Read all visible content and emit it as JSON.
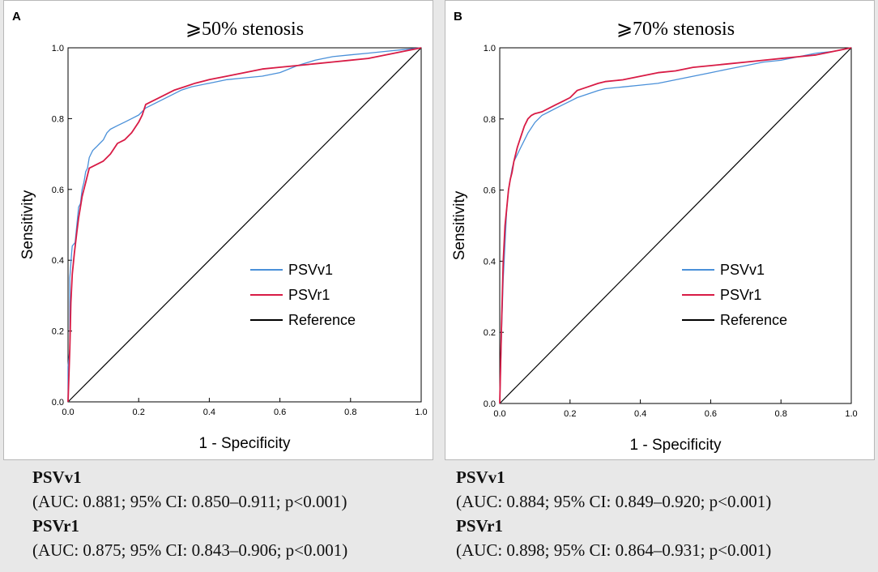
{
  "colors": {
    "psvv1": "#4a90d9",
    "psvr1": "#d81b45",
    "reference": "#000000"
  },
  "panels": [
    {
      "letter": "A",
      "title": "⩾50% stenosis",
      "chart_data": {
        "type": "line",
        "title": "⩾50% stenosis",
        "xlabel": "1 - Specificity",
        "ylabel": "Sensitivity",
        "xlim": [
          0,
          1
        ],
        "ylim": [
          0,
          1
        ],
        "xticks": [
          "0.0",
          "0.2",
          "0.4",
          "0.6",
          "0.8",
          "1.0"
        ],
        "yticks": [
          "0.0",
          "0.2",
          "0.4",
          "0.6",
          "0.8",
          "1.0"
        ],
        "legend": [
          "PSVv1",
          "PSVr1",
          "Reference"
        ],
        "series": [
          {
            "name": "PSVv1",
            "x": [
              0,
              0,
              0.005,
              0.005,
              0.01,
              0.012,
              0.02,
              0.025,
              0.03,
              0.035,
              0.04,
              0.045,
              0.05,
              0.055,
              0.06,
              0.065,
              0.07,
              0.08,
              0.09,
              0.1,
              0.11,
              0.12,
              0.14,
              0.16,
              0.18,
              0.2,
              0.22,
              0.24,
              0.26,
              0.28,
              0.3,
              0.32,
              0.35,
              0.4,
              0.45,
              0.5,
              0.55,
              0.6,
              0.65,
              0.7,
              0.75,
              0.8,
              0.85,
              0.9,
              0.95,
              1.0
            ],
            "y": [
              0,
              0.1,
              0.15,
              0.35,
              0.42,
              0.44,
              0.45,
              0.5,
              0.55,
              0.56,
              0.6,
              0.62,
              0.65,
              0.66,
              0.69,
              0.7,
              0.71,
              0.72,
              0.73,
              0.74,
              0.76,
              0.77,
              0.78,
              0.79,
              0.8,
              0.81,
              0.83,
              0.84,
              0.85,
              0.86,
              0.87,
              0.88,
              0.89,
              0.9,
              0.91,
              0.915,
              0.92,
              0.93,
              0.95,
              0.965,
              0.975,
              0.98,
              0.985,
              0.99,
              0.995,
              1.0
            ]
          },
          {
            "name": "PSVr1",
            "x": [
              0,
              0.005,
              0.008,
              0.012,
              0.018,
              0.025,
              0.03,
              0.035,
              0.04,
              0.045,
              0.05,
              0.055,
              0.06,
              0.08,
              0.1,
              0.12,
              0.14,
              0.16,
              0.18,
              0.2,
              0.21,
              0.22,
              0.24,
              0.26,
              0.28,
              0.3,
              0.33,
              0.36,
              0.4,
              0.45,
              0.5,
              0.55,
              0.6,
              0.65,
              0.7,
              0.75,
              0.8,
              0.85,
              0.9,
              0.95,
              1.0
            ],
            "y": [
              0,
              0.15,
              0.28,
              0.36,
              0.42,
              0.48,
              0.52,
              0.55,
              0.58,
              0.6,
              0.62,
              0.64,
              0.66,
              0.67,
              0.68,
              0.7,
              0.73,
              0.74,
              0.76,
              0.79,
              0.81,
              0.84,
              0.85,
              0.86,
              0.87,
              0.88,
              0.89,
              0.9,
              0.91,
              0.92,
              0.93,
              0.94,
              0.945,
              0.95,
              0.955,
              0.96,
              0.965,
              0.97,
              0.98,
              0.99,
              1.0
            ]
          }
        ]
      },
      "stats": [
        {
          "name": "PSVv1",
          "detail": "(AUC: 0.881; 95% CI: 0.850–0.911; p<0.001)"
        },
        {
          "name": "PSVr1",
          "detail": "(AUC: 0.875; 95% CI: 0.843–0.906; p<0.001)"
        }
      ]
    },
    {
      "letter": "B",
      "title": "⩾70% stenosis",
      "chart_data": {
        "type": "line",
        "title": "⩾70% stenosis",
        "xlabel": "1 - Specificity",
        "ylabel": "Sensitivity",
        "xlim": [
          0,
          1
        ],
        "ylim": [
          0,
          1
        ],
        "xticks": [
          "0.0",
          "0.2",
          "0.4",
          "0.6",
          "0.8",
          "1.0"
        ],
        "yticks": [
          "0.0",
          "0.2",
          "0.4",
          "0.6",
          "0.8",
          "1.0"
        ],
        "legend": [
          "PSVv1",
          "PSVr1",
          "Reference"
        ],
        "series": [
          {
            "name": "PSVv1",
            "x": [
              0,
              0.005,
              0.01,
              0.015,
              0.02,
              0.025,
              0.03,
              0.035,
              0.04,
              0.05,
              0.06,
              0.07,
              0.08,
              0.1,
              0.12,
              0.14,
              0.16,
              0.18,
              0.2,
              0.22,
              0.25,
              0.28,
              0.3,
              0.35,
              0.4,
              0.45,
              0.5,
              0.55,
              0.6,
              0.65,
              0.7,
              0.75,
              0.8,
              0.85,
              0.9,
              0.95,
              1.0
            ],
            "y": [
              0,
              0.2,
              0.35,
              0.45,
              0.55,
              0.6,
              0.63,
              0.66,
              0.68,
              0.7,
              0.72,
              0.74,
              0.76,
              0.79,
              0.81,
              0.82,
              0.83,
              0.84,
              0.85,
              0.86,
              0.87,
              0.88,
              0.885,
              0.89,
              0.895,
              0.9,
              0.91,
              0.92,
              0.93,
              0.94,
              0.95,
              0.96,
              0.965,
              0.975,
              0.985,
              0.99,
              1.0
            ]
          },
          {
            "name": "PSVr1",
            "x": [
              0,
              0.005,
              0.01,
              0.015,
              0.02,
              0.025,
              0.03,
              0.035,
              0.04,
              0.05,
              0.06,
              0.07,
              0.08,
              0.09,
              0.1,
              0.12,
              0.14,
              0.16,
              0.18,
              0.2,
              0.22,
              0.25,
              0.28,
              0.3,
              0.35,
              0.4,
              0.45,
              0.5,
              0.55,
              0.6,
              0.65,
              0.7,
              0.75,
              0.8,
              0.85,
              0.9,
              0.95,
              1.0
            ],
            "y": [
              0,
              0.22,
              0.4,
              0.5,
              0.55,
              0.6,
              0.63,
              0.65,
              0.68,
              0.72,
              0.75,
              0.78,
              0.8,
              0.81,
              0.815,
              0.82,
              0.83,
              0.84,
              0.85,
              0.86,
              0.88,
              0.89,
              0.9,
              0.905,
              0.91,
              0.92,
              0.93,
              0.935,
              0.945,
              0.95,
              0.955,
              0.96,
              0.965,
              0.97,
              0.975,
              0.98,
              0.99,
              1.0
            ]
          }
        ]
      },
      "stats": [
        {
          "name": "PSVv1",
          "detail": "(AUC: 0.884; 95% CI: 0.849–0.920; p<0.001)"
        },
        {
          "name": "PSVr1",
          "detail": "(AUC: 0.898; 95% CI: 0.864–0.931; p<0.001)"
        }
      ]
    }
  ]
}
